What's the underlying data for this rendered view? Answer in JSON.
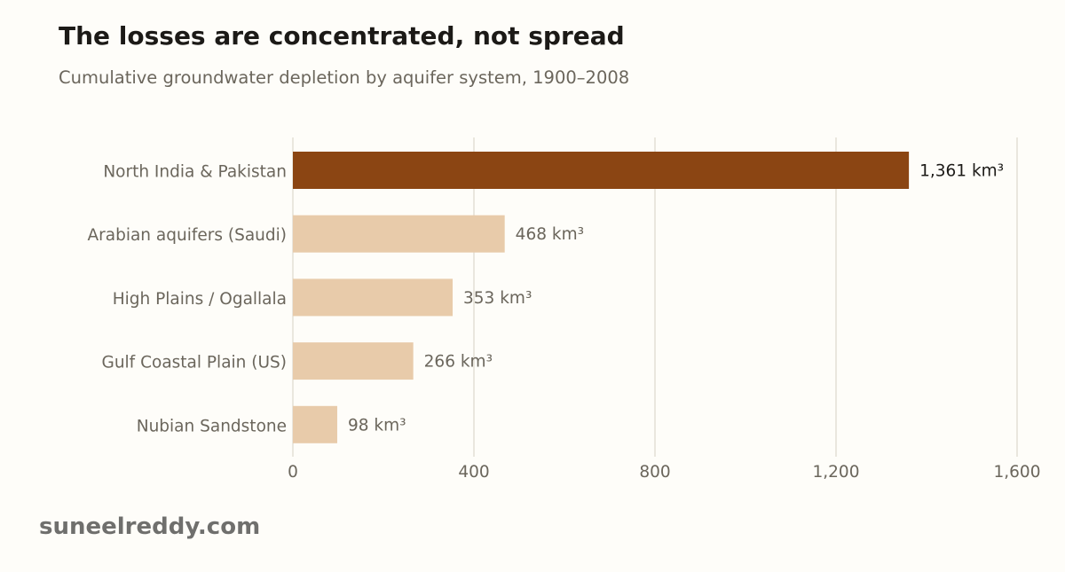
{
  "header": {
    "title": "The losses are concentrated, not spread",
    "subtitle": "Cumulative groundwater depletion by aquifer system, 1900–2008"
  },
  "footer": {
    "source": "suneelreddy.com"
  },
  "colors": {
    "background": "#fefdf9",
    "highlight_bar": "#8b4513",
    "muted_bar": "#e8cbaa",
    "gridline": "#e4e0d6",
    "axis_text": "#6b665c",
    "highlight_text": "#1c1a17"
  },
  "chart_data": {
    "type": "bar",
    "orientation": "horizontal",
    "categories": [
      "North India & Pakistan",
      "Arabian aquifers (Saudi)",
      "High Plains / Ogallala",
      "Gulf Coastal Plain (US)",
      "Nubian Sandstone"
    ],
    "values": [
      1361,
      468,
      353,
      266,
      98
    ],
    "value_labels": [
      "1,361 km³",
      "468 km³",
      "353 km³",
      "266 km³",
      "98 km³"
    ],
    "highlight_index": 0,
    "xlim": [
      0,
      1600
    ],
    "xticks": [
      0,
      400,
      800,
      1200,
      1600
    ],
    "xtick_labels": [
      "0",
      "400",
      "800",
      "1,200",
      "1,600"
    ],
    "grid": "vertical",
    "legend": "none"
  }
}
